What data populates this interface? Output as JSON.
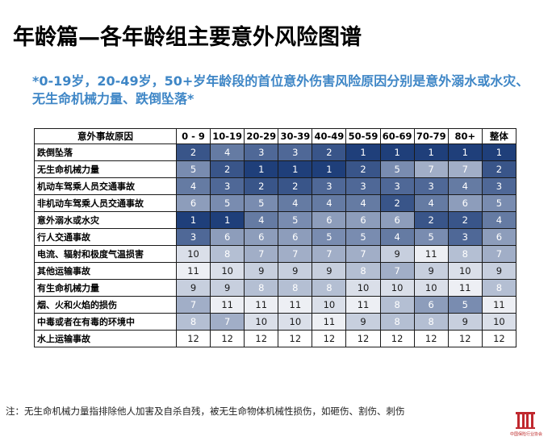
{
  "page": {
    "title": "年龄篇—各年龄组主要意外风险图谱",
    "subtitle": "*0-19岁，20-49岁，50+岁年龄段的首位意外伤害风险原因分别是意外溺水或水灾、无生命机械力量、跌倒坠落*",
    "footnote": "注：无生命机械力量指排除他人加害及自杀自残，被无生命物体机械性损伤，如砸伤、割伤、刺伤",
    "logo_text": "中国保险行业协会"
  },
  "table": {
    "header_label": "意外事故原因",
    "columns": [
      "0 - 9",
      "10-19",
      "20-29",
      "30-39",
      "40-49",
      "50-59",
      "60-69",
      "70-79",
      "80+",
      "整体"
    ],
    "rows": [
      {
        "label": "跌倒坠落",
        "values": [
          "2",
          "4",
          "3",
          "3",
          "2",
          "1",
          "1",
          "1",
          "1",
          "1"
        ]
      },
      {
        "label": "无生命机械力量",
        "values": [
          "5",
          "2",
          "1",
          "1",
          "1",
          "2",
          "5",
          "7",
          "7",
          "2"
        ]
      },
      {
        "label": "机动车驾乘人员交通事故",
        "values": [
          "4",
          "3",
          "2",
          "2",
          "3",
          "3",
          "3",
          "3",
          "4",
          "3"
        ]
      },
      {
        "label": "非机动车驾乘人员交通事故",
        "values": [
          "6",
          "5",
          "5",
          "4",
          "4",
          "4",
          "2",
          "4",
          "6",
          "5"
        ]
      },
      {
        "label": "意外溺水或水灾",
        "values": [
          "1",
          "1",
          "4",
          "5",
          "6",
          "6",
          "6",
          "2",
          "2",
          "4"
        ]
      },
      {
        "label": "行人交通事故",
        "values": [
          "3",
          "6",
          "6",
          "6",
          "5",
          "5",
          "4",
          "5",
          "3",
          "6"
        ]
      },
      {
        "label": "电流、辐射和极度气温损害",
        "values": [
          "10",
          "8",
          "7",
          "7",
          "7",
          "7",
          "9",
          "11",
          "8",
          "7"
        ]
      },
      {
        "label": "其他运输事故",
        "values": [
          "11",
          "10",
          "9",
          "9",
          "9",
          "8",
          "7",
          "9",
          "10",
          "9"
        ]
      },
      {
        "label": "有生命机械力量",
        "values": [
          "9",
          "9",
          "8",
          "8",
          "8",
          "10",
          "10",
          "10",
          "11",
          "8"
        ]
      },
      {
        "label": "烟、火和火焰的损伤",
        "values": [
          "7",
          "11",
          "11",
          "11",
          "10",
          "11",
          "8",
          "6",
          "5",
          "11"
        ]
      },
      {
        "label": "中毒或者在有毒的环境中",
        "values": [
          "8",
          "7",
          "10",
          "10",
          "11",
          "9",
          "8",
          "8",
          "9",
          "10"
        ]
      },
      {
        "label": "水上运输事故",
        "values": [
          "12",
          "12",
          "12",
          "12",
          "12",
          "12",
          "12",
          "12",
          "12",
          "12"
        ]
      }
    ]
  },
  "colors": {
    "rank_1": "#1f3f7a",
    "rank_12": "#ffffff",
    "subtitle": "#3e86c6"
  }
}
